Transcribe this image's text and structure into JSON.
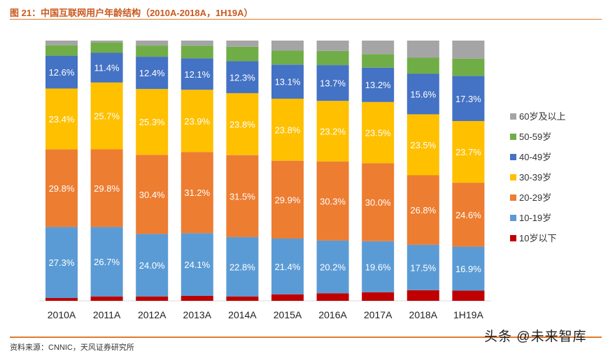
{
  "header": {
    "title": "图 21：中国互联网用户年龄结构（2010A-2018A，1H19A）"
  },
  "footer": {
    "source": "资料来源：CNNIC，天风证券研究所",
    "watermark": "头条 @未来智库"
  },
  "colors": {
    "lt10": "#c00000",
    "10_19": "#5b9bd5",
    "20_29": "#ed7d31",
    "30_39": "#ffc000",
    "40_49": "#4472c4",
    "50_59": "#70ad47",
    "60plus": "#a5a5a5",
    "title": "#c9581f",
    "rule": "#e07a2c"
  },
  "chart_data": {
    "type": "bar",
    "stacked": true,
    "categories": [
      "2010A",
      "2011A",
      "2012A",
      "2013A",
      "2014A",
      "2015A",
      "2016A",
      "2017A",
      "2018A",
      "1H19A"
    ],
    "series": [
      {
        "name": "10岁以下",
        "key": "lt10",
        "values": [
          1.1,
          1.7,
          1.7,
          1.9,
          1.7,
          2.5,
          2.9,
          3.3,
          4.1,
          3.9
        ],
        "labeled": false
      },
      {
        "name": "10-19岁",
        "key": "10_19",
        "values": [
          27.3,
          26.7,
          24.0,
          24.1,
          22.8,
          21.4,
          20.2,
          19.6,
          17.5,
          16.9
        ],
        "labeled": true
      },
      {
        "name": "20-29岁",
        "key": "20_29",
        "values": [
          29.8,
          29.8,
          30.4,
          31.2,
          31.5,
          29.9,
          30.3,
          30.0,
          26.8,
          24.6
        ],
        "labeled": true
      },
      {
        "name": "30-39岁",
        "key": "30_39",
        "values": [
          23.4,
          25.7,
          25.3,
          23.9,
          23.8,
          23.8,
          23.2,
          23.5,
          23.5,
          23.7
        ],
        "labeled": true
      },
      {
        "name": "40-49岁",
        "key": "40_49",
        "values": [
          12.6,
          11.4,
          12.4,
          12.1,
          12.3,
          13.1,
          13.7,
          13.2,
          15.6,
          17.3
        ],
        "labeled": true
      },
      {
        "name": "50-59岁",
        "key": "50_59",
        "values": [
          4.0,
          4.0,
          4.3,
          4.8,
          5.5,
          5.3,
          5.4,
          5.2,
          6.2,
          6.7
        ],
        "labeled": false
      },
      {
        "name": "60岁及以上",
        "key": "60plus",
        "values": [
          1.8,
          0.7,
          1.9,
          2.0,
          2.4,
          3.9,
          4.0,
          5.2,
          6.6,
          6.9
        ],
        "labeled": false
      }
    ],
    "value_format": "percent_1dp",
    "ylim": [
      0,
      100
    ],
    "legend": {
      "position": "right",
      "order": [
        "60岁及以上",
        "50-59岁",
        "40-49岁",
        "30-39岁",
        "20-29岁",
        "10-19岁",
        "10岁以下"
      ]
    },
    "grid": false
  }
}
